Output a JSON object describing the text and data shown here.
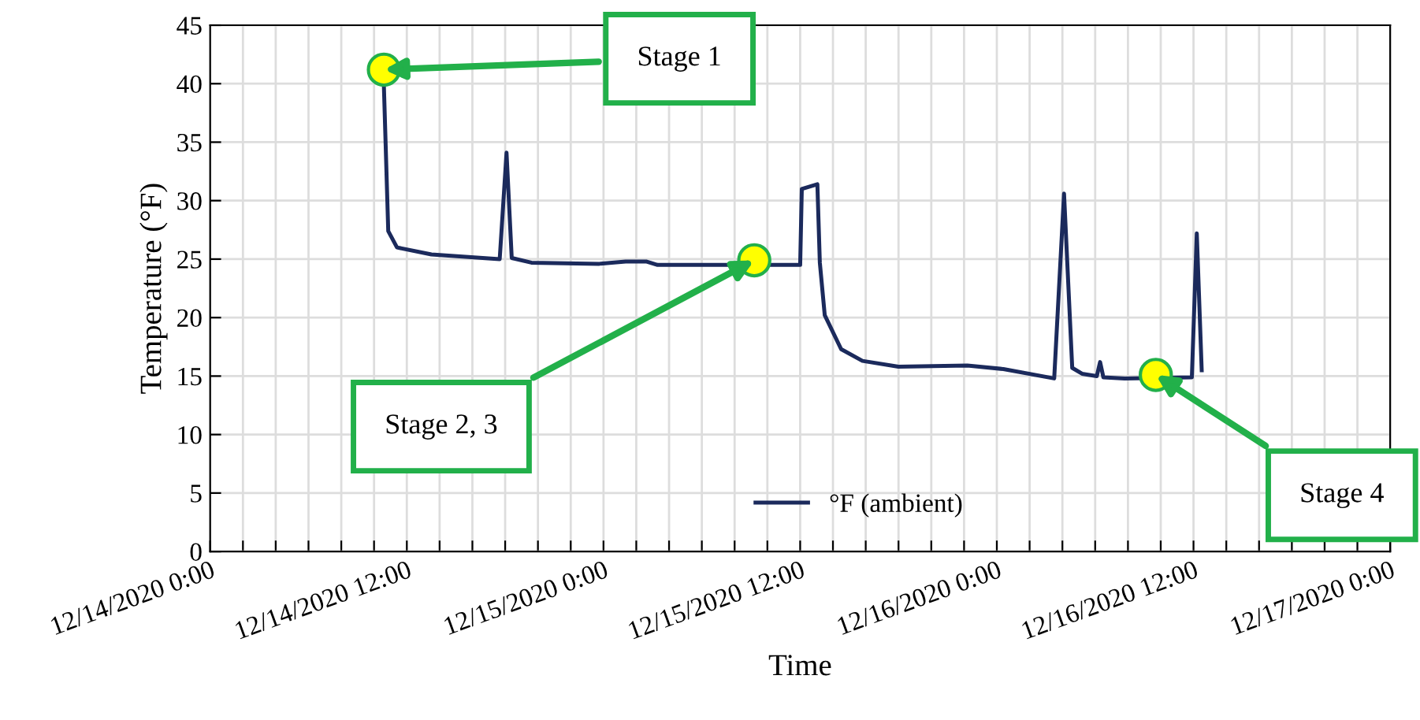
{
  "chart_data": {
    "type": "line",
    "xlabel": "Time",
    "ylabel": "Temperature (°F)",
    "x": [
      "2020-12-14T10:36",
      "2020-12-14T10:52",
      "2020-12-14T11:24",
      "2020-12-14T13:30",
      "2020-12-14T17:40",
      "2020-12-14T18:05",
      "2020-12-14T18:24",
      "2020-12-14T19:36",
      "2020-12-14T23:45",
      "2020-12-15T01:21",
      "2020-12-15T02:36",
      "2020-12-15T03:18",
      "2020-12-15T12:00",
      "2020-12-15T12:06",
      "2020-12-15T13:03",
      "2020-12-15T13:12",
      "2020-12-15T13:30",
      "2020-12-15T14:30",
      "2020-12-15T15:48",
      "2020-12-15T18:00",
      "2020-12-15T22:12",
      "2020-12-16T00:24",
      "2020-12-16T03:30",
      "2020-12-16T04:06",
      "2020-12-16T04:36",
      "2020-12-16T05:12",
      "2020-12-16T06:06",
      "2020-12-16T06:18",
      "2020-12-16T06:30",
      "2020-12-16T07:48",
      "2020-12-16T11:54",
      "2020-12-16T12:12",
      "2020-12-16T12:30"
    ],
    "series": [
      {
        "name": "°F (ambient)",
        "color": "#1b2a5c",
        "values": [
          39.8,
          27.4,
          26.0,
          25.4,
          25.0,
          34.1,
          25.1,
          24.7,
          24.6,
          24.8,
          24.8,
          24.5,
          24.5,
          31.0,
          31.4,
          24.7,
          20.2,
          17.3,
          16.3,
          15.8,
          15.9,
          15.6,
          14.8,
          30.6,
          15.7,
          15.2,
          15.0,
          16.2,
          14.9,
          14.8,
          14.9,
          27.2,
          15.5
        ]
      },
      {
        "type": "scatter",
        "marker": "circle",
        "color": "#ffff00",
        "x": [
          "2020-12-14T10:36",
          "2020-12-15T09:12",
          "2020-12-16T09:42"
        ],
        "values": [
          41.2,
          24.9,
          15.1
        ]
      }
    ],
    "xlim": [
      "2020-12-14T00:00",
      "2020-12-17T00:00"
    ],
    "xticks": [
      {
        "value": "2020-12-14T00:00",
        "label": "12/14/2020 0:00"
      },
      {
        "value": "2020-12-14T02:00",
        "label": null
      },
      {
        "value": "2020-12-14T04:00",
        "label": null
      },
      {
        "value": "2020-12-14T06:00",
        "label": null
      },
      {
        "value": "2020-12-14T08:00",
        "label": null
      },
      {
        "value": "2020-12-14T10:00",
        "label": null
      },
      {
        "value": "2020-12-14T12:00",
        "label": "12/14/2020 12:00"
      },
      {
        "value": "2020-12-14T14:00",
        "label": null
      },
      {
        "value": "2020-12-14T16:00",
        "label": null
      },
      {
        "value": "2020-12-14T18:00",
        "label": null
      },
      {
        "value": "2020-12-14T20:00",
        "label": null
      },
      {
        "value": "2020-12-14T22:00",
        "label": null
      },
      {
        "value": "2020-12-15T00:00",
        "label": "12/15/2020 0:00"
      },
      {
        "value": "2020-12-15T02:00",
        "label": null
      },
      {
        "value": "2020-12-15T04:00",
        "label": null
      },
      {
        "value": "2020-12-15T06:00",
        "label": null
      },
      {
        "value": "2020-12-15T08:00",
        "label": null
      },
      {
        "value": "2020-12-15T10:00",
        "label": null
      },
      {
        "value": "2020-12-15T12:00",
        "label": "12/15/2020 12:00"
      },
      {
        "value": "2020-12-15T14:00",
        "label": null
      },
      {
        "value": "2020-12-15T16:00",
        "label": null
      },
      {
        "value": "2020-12-15T18:00",
        "label": null
      },
      {
        "value": "2020-12-15T20:00",
        "label": null
      },
      {
        "value": "2020-12-15T22:00",
        "label": null
      },
      {
        "value": "2020-12-16T00:00",
        "label": "12/16/2020 0:00"
      },
      {
        "value": "2020-12-16T02:00",
        "label": null
      },
      {
        "value": "2020-12-16T04:00",
        "label": null
      },
      {
        "value": "2020-12-16T06:00",
        "label": null
      },
      {
        "value": "2020-12-16T08:00",
        "label": null
      },
      {
        "value": "2020-12-16T10:00",
        "label": null
      },
      {
        "value": "2020-12-16T12:00",
        "label": "12/16/2020 12:00"
      },
      {
        "value": "2020-12-16T14:00",
        "label": null
      },
      {
        "value": "2020-12-16T16:00",
        "label": null
      },
      {
        "value": "2020-12-16T18:00",
        "label": null
      },
      {
        "value": "2020-12-16T20:00",
        "label": null
      },
      {
        "value": "2020-12-16T22:00",
        "label": null
      },
      {
        "value": "2020-12-17T00:00",
        "label": "12/17/2020 0:00"
      }
    ],
    "ylim": [
      0,
      45
    ],
    "yticks": [
      0,
      5,
      10,
      15,
      20,
      25,
      30,
      35,
      40,
      45
    ],
    "grid": true,
    "legend": "bottom",
    "marker": "none",
    "line_style": "solid",
    "annotations": [
      "Stage 1",
      "Stage 2, 3",
      "Stage 4"
    ]
  }
}
